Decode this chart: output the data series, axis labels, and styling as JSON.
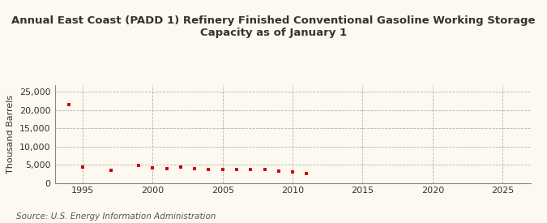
{
  "title": "Annual East Coast (PADD 1) Refinery Finished Conventional Gasoline Working Storage\nCapacity as of January 1",
  "ylabel": "Thousand Barrels",
  "source": "Source: U.S. Energy Information Administration",
  "background_color": "#fef9f0",
  "plot_bg_color": "#fef9f0",
  "marker_color": "#cc0000",
  "years": [
    1994,
    1995,
    1997,
    1999,
    2000,
    2001,
    2002,
    2003,
    2004,
    2005,
    2006,
    2007,
    2008,
    2009,
    2010,
    2011
  ],
  "values": [
    21600,
    4300,
    3400,
    4900,
    4200,
    4000,
    4400,
    3800,
    3700,
    3600,
    3600,
    3700,
    3600,
    3200,
    3100,
    2500
  ],
  "xlim": [
    1993,
    2027
  ],
  "ylim": [
    0,
    27000
  ],
  "yticks": [
    0,
    5000,
    10000,
    15000,
    20000,
    25000
  ],
  "xticks": [
    1995,
    2000,
    2005,
    2010,
    2015,
    2020,
    2025
  ],
  "title_fontsize": 9.5,
  "label_fontsize": 8,
  "tick_fontsize": 8,
  "source_fontsize": 7.5
}
